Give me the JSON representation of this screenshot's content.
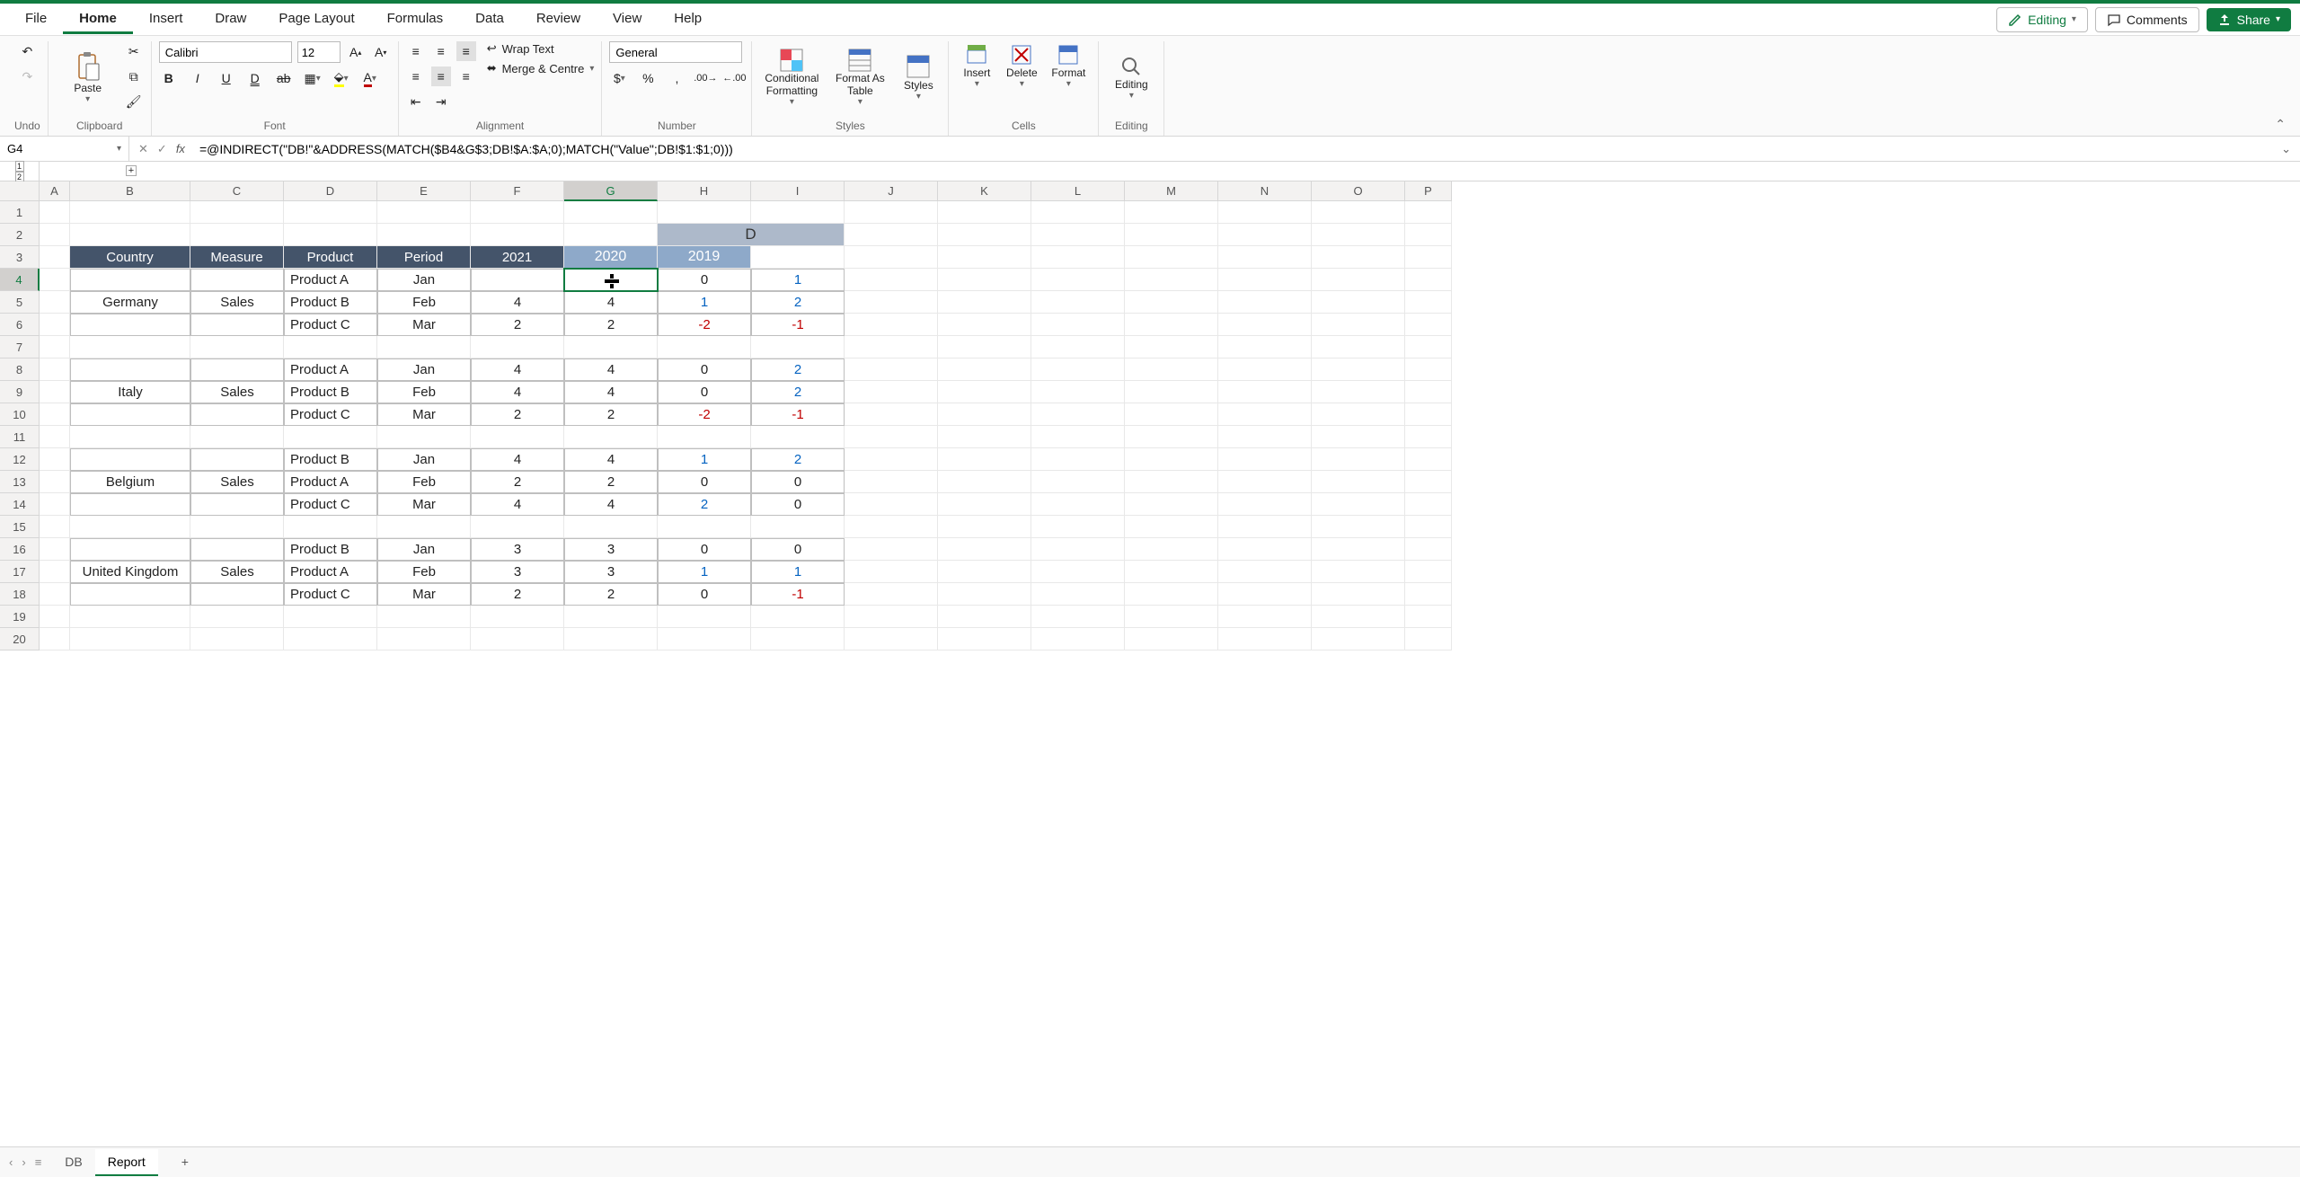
{
  "menu": {
    "tabs": [
      "File",
      "Home",
      "Insert",
      "Draw",
      "Page Layout",
      "Formulas",
      "Data",
      "Review",
      "View",
      "Help"
    ],
    "active": "Home",
    "editing": "Editing",
    "comments": "Comments",
    "share": "Share"
  },
  "ribbon": {
    "undo_label": "Undo",
    "clipboard_label": "Clipboard",
    "paste": "Paste",
    "font_label": "Font",
    "font_name": "Calibri",
    "font_size": "12",
    "alignment_label": "Alignment",
    "wrap_text": "Wrap Text",
    "merge_centre": "Merge & Centre",
    "number_label": "Number",
    "number_format": "General",
    "styles_label": "Styles",
    "conditional_formatting": "Conditional Formatting",
    "format_as_table": "Format As Table",
    "styles_btn": "Styles",
    "cells_label": "Cells",
    "insert": "Insert",
    "delete": "Delete",
    "format": "Format",
    "editing_label": "Editing",
    "editing_btn": "Editing"
  },
  "formula_bar": {
    "cell_ref": "G4",
    "formula": "=@INDIRECT(\"DB!\"&ADDRESS(MATCH($B4&G$3;DB!$A:$A;0);MATCH(\"Value\";DB!$1:$1;0)))"
  },
  "columns": {
    "letters": [
      "A",
      "B",
      "C",
      "D",
      "E",
      "F",
      "G",
      "H",
      "I",
      "J",
      "K",
      "L",
      "M",
      "N",
      "O",
      "P"
    ],
    "row_header_w": 44,
    "widths": [
      34,
      134,
      104,
      104,
      104,
      104,
      104,
      104,
      104,
      104,
      104,
      104,
      104,
      104,
      104,
      52
    ]
  },
  "rows": {
    "count": 20,
    "height": 25
  },
  "selected": {
    "col": "G",
    "row": 4
  },
  "header_group_label": "D",
  "table": {
    "headers": [
      "Country",
      "Measure",
      "Product",
      "Period",
      "2021",
      "2020",
      "2019"
    ],
    "blocks": [
      {
        "country": "Germany",
        "measure": "Sales",
        "rows": [
          [
            "Product A",
            "Jan",
            "",
            "0",
            "1"
          ],
          [
            "Product B",
            "Feb",
            "4",
            "1",
            "2"
          ],
          [
            "Product C",
            "Mar",
            "2",
            "-2",
            "-1"
          ]
        ]
      },
      {
        "country": "Italy",
        "measure": "Sales",
        "rows": [
          [
            "Product A",
            "Jan",
            "4",
            "0",
            "2"
          ],
          [
            "Product B",
            "Feb",
            "4",
            "0",
            "2"
          ],
          [
            "Product C",
            "Mar",
            "2",
            "-2",
            "-1"
          ]
        ]
      },
      {
        "country": "Belgium",
        "measure": "Sales",
        "rows": [
          [
            "Product B",
            "Jan",
            "4",
            "1",
            "2"
          ],
          [
            "Product A",
            "Feb",
            "2",
            "0",
            "0"
          ],
          [
            "Product C",
            "Mar",
            "4",
            "2",
            "0"
          ]
        ]
      },
      {
        "country": "United Kingdom",
        "measure": "Sales",
        "rows": [
          [
            "Product B",
            "Jan",
            "3",
            "0",
            "0"
          ],
          [
            "Product A",
            "Feb",
            "3",
            "1",
            "1"
          ],
          [
            "Product C",
            "Mar",
            "2",
            "0",
            "-1"
          ]
        ]
      }
    ]
  },
  "sheets": {
    "tabs": [
      "DB",
      "Report"
    ],
    "active": "Report"
  },
  "colors": {
    "header_dark": "#44546a",
    "header_light": "#8ea9c9",
    "header_d": "#adb9ca",
    "positive": "#0563c1",
    "negative": "#c00000",
    "accent": "#107c41"
  }
}
